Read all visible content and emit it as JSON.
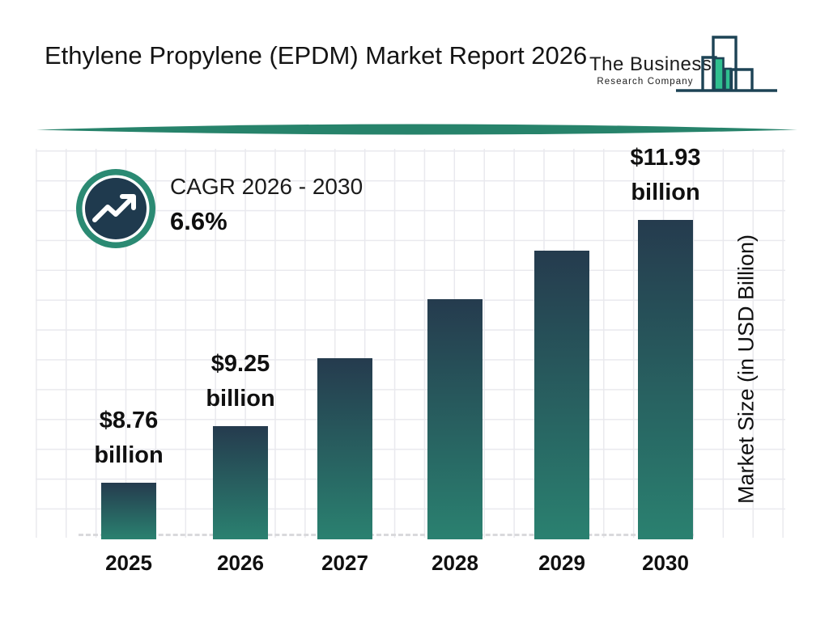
{
  "header": {
    "title": "Ethylene Propylene (EPDM) Market Report 2026",
    "logo": {
      "line1": "The Business",
      "line2": "Research Company"
    }
  },
  "cagr": {
    "label": "CAGR 2026 - 2030",
    "value": "6.6%"
  },
  "chart_data": {
    "type": "bar",
    "title": "Ethylene Propylene (EPDM) Market Report 2026",
    "categories": [
      "2025",
      "2026",
      "2027",
      "2028",
      "2029",
      "2030"
    ],
    "values": [
      8.76,
      9.25,
      9.86,
      10.51,
      11.2,
      11.93
    ],
    "value_labels": [
      "$8.76 billion",
      "$9.25 billion",
      "",
      "",
      "",
      "$11.93 billion"
    ],
    "labeled_points": {
      "2025": "$8.76 billion",
      "2026": "$9.25 billion",
      "2030": "$11.93 billion"
    },
    "unlabeled_values_estimated_from_cagr": [
      "2027",
      "2028",
      "2029"
    ],
    "xlabel": "",
    "ylabel": "Market Size (in USD Billion)",
    "yaxis_ticks": "none",
    "grid": true,
    "baseline_style": "dashed",
    "legend": "none",
    "colors": {
      "bar_gradient_top": "#253b4e",
      "bar_gradient_bottom": "#2a8170",
      "accent_teal": "#2b8a73",
      "badge_navy": "#1f3a4e",
      "logo_green": "#2fbf8f",
      "logo_stroke": "#1d4355",
      "divider_teal": "#27836b",
      "grid_line": "#e9e9ee"
    }
  }
}
